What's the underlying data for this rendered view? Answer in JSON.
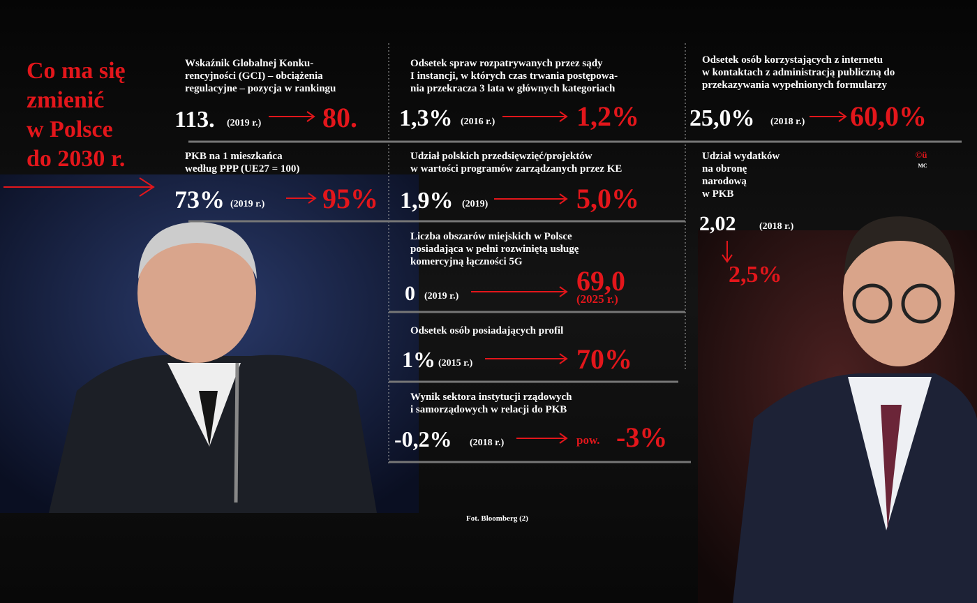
{
  "title": [
    "Co ma się",
    "zmienić",
    "w Polsce",
    "do 2030 r."
  ],
  "indicators": [
    {
      "label": [
        "Wskaźnik Globalnej Konku-",
        "rencyjności (GCI) – obciążenia",
        "regulacyjne – pozycja w rankingu"
      ],
      "from": "113.",
      "from_note": "(2019 r.)",
      "to": "80."
    },
    {
      "label": [
        "Odsetek spraw rozpatrywanych przez sądy",
        "I instancji, w których czas trwania postępowa-",
        "nia przekracza 3 lata w głównych kategoriach"
      ],
      "from": "1,3%",
      "from_note": "(2016 r.)",
      "to": "1,2%"
    },
    {
      "label": [
        "Odsetek osób korzystających z internetu",
        "w kontaktach z administracją publiczną do",
        "przekazywania wypełnionych formularzy"
      ],
      "from": "25,0%",
      "from_note": "(2018 r.)",
      "to": "60,0%"
    },
    {
      "label": [
        "PKB na 1 mieszkańca",
        "według PPP (UE27 = 100)"
      ],
      "from": "73%",
      "from_note": "(2019 r.)",
      "to": "95%"
    },
    {
      "label": [
        "Udział polskich przedsięwzięć/projektów",
        "w wartości programów zarządzanych przez KE"
      ],
      "from": "1,9%",
      "from_note": "(2019)",
      "to": "5,0%"
    },
    {
      "label": [
        "Udział wydatków",
        "na obronę",
        "narodową",
        "w PKB"
      ],
      "from": "2,02",
      "from_note": "(2018 r.)",
      "to": "2,5%"
    },
    {
      "label": [
        "Liczba obszarów miejskich w Polsce",
        "posiadająca w pełni rozwiniętą usługę",
        "komercyjną łączności 5G"
      ],
      "from": "0",
      "from_note": "(2019 r.)",
      "to": "69,0",
      "to_note": "(2025 r.)"
    },
    {
      "label": [
        "Odsetek osób posiadających profil"
      ],
      "from": "1%",
      "from_note": "(2015 r.)",
      "to": "70%"
    },
    {
      "label": [
        "Wynik sektora instytucji rządowych",
        "i samorządowych w relacji do PKB"
      ],
      "from": "-0,2%",
      "from_note": "(2018 r.)",
      "to_prefix": "pow.",
      "to": "-3%"
    }
  ],
  "logo": [
    "©ü",
    "MC"
  ],
  "credit": "Fot. Bloomberg (2)"
}
